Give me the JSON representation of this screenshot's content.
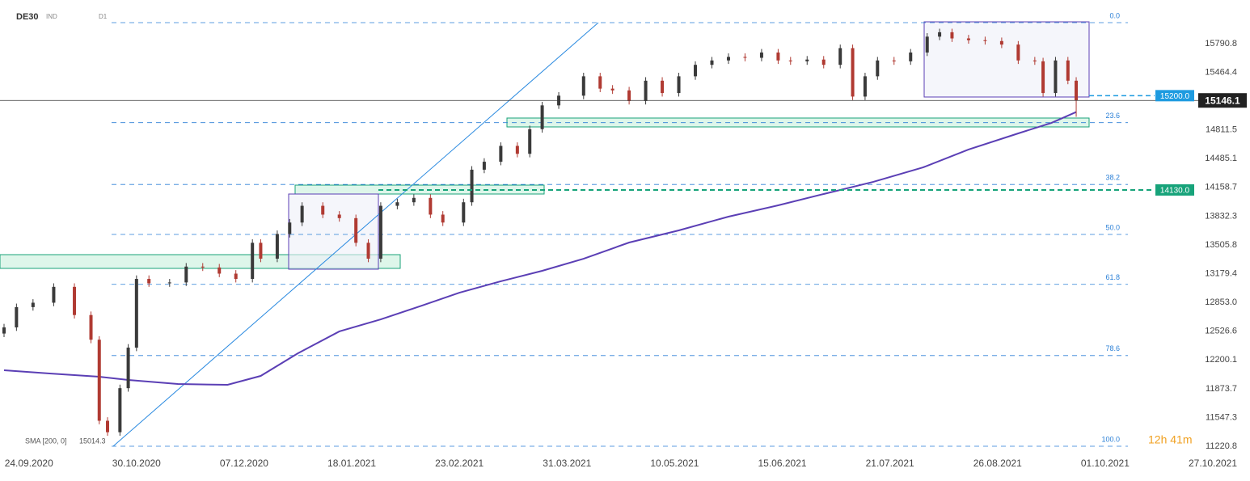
{
  "chart_data": {
    "type": "candlestick",
    "symbol": "DE30",
    "market": "IND",
    "timeframe": "D1",
    "x": [
      0,
      3,
      7,
      12,
      17,
      21,
      23,
      25,
      28,
      30,
      32,
      35,
      40,
      44,
      48,
      52,
      56,
      60,
      62,
      66,
      69,
      72,
      77,
      81,
      85,
      88,
      91,
      95,
      99,
      103,
      106,
      111,
      113,
      116,
      120,
      124,
      127,
      130,
      134,
      140,
      144,
      147,
      151,
      155,
      159,
      163,
      167,
      171,
      175,
      179,
      183,
      187,
      190,
      194,
      198,
      202,
      205,
      208,
      211,
      215,
      219,
      223,
      226,
      229,
      233,
      237,
      241,
      245,
      249,
      251,
      254,
      257,
      259
    ],
    "open": [
      12500,
      12570,
      12800,
      12850,
      13030,
      12710,
      12430,
      11510,
      11380,
      11880,
      12340,
      13120,
      13070,
      13080,
      13260,
      13250,
      13180,
      13120,
      13530,
      13350,
      13630,
      13760,
      13950,
      13850,
      13810,
      13530,
      13350,
      13950,
      13990,
      14040,
      13850,
      13760,
      13990,
      14360,
      14450,
      14630,
      14540,
      14820,
      15090,
      15200,
      15420,
      15280,
      15260,
      15140,
      15370,
      15230,
      15420,
      15550,
      15600,
      15640,
      15630,
      15690,
      15600,
      15590,
      15610,
      15550,
      15740,
      15190,
      15420,
      15600,
      15590,
      15690,
      15870,
      15920,
      15850,
      15830,
      15820,
      15780,
      15600,
      15590,
      15230,
      15600,
      15370
    ],
    "high": [
      12610,
      12840,
      12890,
      13070,
      13070,
      12750,
      12470,
      11550,
      11920,
      12380,
      13160,
      13160,
      13120,
      13300,
      13300,
      13290,
      13220,
      13570,
      13570,
      13670,
      13800,
      13990,
      13990,
      13890,
      13850,
      13570,
      13990,
      14030,
      14080,
      14080,
      13890,
      14030,
      14400,
      14490,
      14670,
      14670,
      14860,
      15130,
      15240,
      15460,
      15460,
      15320,
      15300,
      15410,
      15410,
      15460,
      15590,
      15640,
      15680,
      15680,
      15730,
      15730,
      15640,
      15650,
      15650,
      15780,
      15780,
      15460,
      15640,
      15640,
      15730,
      15910,
      15960,
      15960,
      15890,
      15870,
      15860,
      15820,
      15640,
      15630,
      15640,
      15640,
      15410
    ],
    "low": [
      12460,
      12530,
      12760,
      12810,
      12670,
      12390,
      11470,
      11340,
      11340,
      11840,
      12300,
      13030,
      13030,
      13040,
      13210,
      13140,
      13080,
      13080,
      13310,
      13310,
      13590,
      13720,
      13810,
      13770,
      13490,
      13310,
      13310,
      13910,
      13950,
      13810,
      13720,
      13720,
      13950,
      14320,
      14410,
      14500,
      14500,
      14780,
      15050,
      15160,
      15240,
      15220,
      15100,
      15100,
      15190,
      15190,
      15380,
      15510,
      15560,
      15590,
      15590,
      15560,
      15550,
      15550,
      15510,
      15510,
      15150,
      15150,
      15380,
      15550,
      15550,
      15650,
      15830,
      15810,
      15790,
      15780,
      15740,
      15560,
      15550,
      15190,
      15190,
      15330,
      14960
    ],
    "close": [
      12570,
      12800,
      12850,
      13030,
      12710,
      12430,
      11510,
      11380,
      11880,
      12340,
      13120,
      13070,
      13080,
      13260,
      13250,
      13180,
      13120,
      13530,
      13350,
      13630,
      13760,
      13950,
      13850,
      13810,
      13530,
      13350,
      13950,
      13990,
      14040,
      13850,
      13760,
      13990,
      14360,
      14450,
      14630,
      14540,
      14820,
      15090,
      15200,
      15420,
      15280,
      15260,
      15140,
      15370,
      15230,
      15420,
      15550,
      15600,
      15640,
      15630,
      15690,
      15600,
      15590,
      15610,
      15550,
      15740,
      15190,
      15420,
      15600,
      15590,
      15690,
      15870,
      15920,
      15850,
      15830,
      15820,
      15780,
      15600,
      15590,
      15230,
      15600,
      15370,
      15146.1
    ],
    "up_color": "#3a3a3a",
    "down_color": "#b03a32",
    "sma": {
      "name": "SMA [200, 0]",
      "color": "#5b3fb5",
      "x": [
        0,
        11,
        23,
        30,
        42,
        54,
        62,
        71,
        81,
        91,
        101,
        110,
        120,
        130,
        140,
        151,
        163,
        175,
        187,
        198,
        210,
        222,
        233,
        245,
        253,
        259
      ],
      "values": [
        12083,
        12047,
        12010,
        11973,
        11927,
        11918,
        12019,
        12276,
        12524,
        12661,
        12818,
        12964,
        13093,
        13212,
        13349,
        13533,
        13671,
        13827,
        13955,
        14084,
        14222,
        14386,
        14589,
        14772,
        14891,
        15014.3
      ]
    },
    "fibonacci": {
      "levels": [
        16029,
        14894,
        14192,
        13625,
        13058,
        12250,
        11221
      ],
      "labels": [
        "0.0",
        "23.6",
        "38.2",
        "50.0",
        "61.8",
        "78.6",
        "100.0"
      ],
      "color": "#2a7fd6"
    },
    "price_lines": [
      {
        "value": 15200,
        "label": "15200.0",
        "color": "#1e9be0"
      },
      {
        "value": 14130,
        "label": "14130.0",
        "color": "#17a37a"
      }
    ],
    "last_price": 15146.1,
    "xlim": [
      0,
      292
    ],
    "ylim": [
      11129,
      16286
    ],
    "xticks": [
      {
        "value": 6,
        "label": "24.09.2020"
      },
      {
        "value": 32,
        "label": "30.10.2020"
      },
      {
        "value": 58,
        "label": "07.12.2020"
      },
      {
        "value": 84,
        "label": "18.01.2021"
      },
      {
        "value": 110,
        "label": "23.02.2021"
      },
      {
        "value": 136,
        "label": "31.03.2021"
      },
      {
        "value": 162,
        "label": "10.05.2021"
      },
      {
        "value": 188,
        "label": "15.06.2021"
      },
      {
        "value": 214,
        "label": "21.07.2021"
      },
      {
        "value": 240,
        "label": "26.08.2021"
      },
      {
        "value": 266,
        "label": "01.10.2021"
      },
      {
        "value": 292,
        "label": "27.10.2021"
      }
    ],
    "yticks": [
      15790.8,
      15464.4,
      14811.5,
      14485.1,
      14158.7,
      13832.3,
      13505.8,
      13179.4,
      {
        "value": 12853,
        "label": "12853.0"
      },
      12526.6,
      12200.1,
      11873.7,
      11547.3,
      11220.8
    ],
    "timer": "12h 41m"
  }
}
